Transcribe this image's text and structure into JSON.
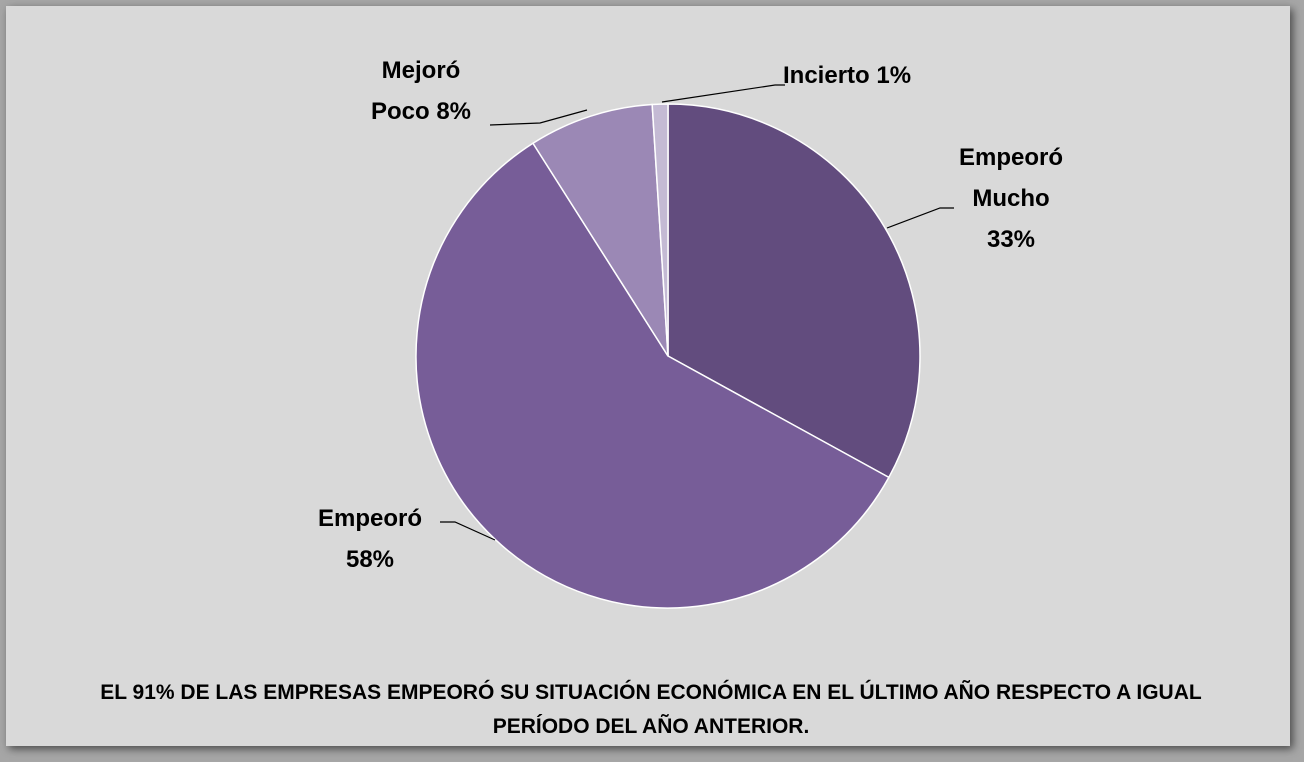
{
  "chart_data": {
    "type": "pie",
    "categories": [
      "Empeoró Mucho",
      "Empeoró",
      "Mejoró Poco",
      "Incierto"
    ],
    "values": [
      33,
      58,
      8,
      1
    ],
    "value_labels": [
      "33%",
      "58%",
      "8%",
      "1%"
    ],
    "colors": [
      "#624c7e",
      "#775d98",
      "#9b88b5",
      "#c4bad4"
    ],
    "annotation": "EL 91% DE LAS EMPRESAS EMPEORÓ SU SITUACIÓN ECONÓMICA EN EL ÚLTIMO AÑO RESPECTO A IGUAL PERÍODO DEL AÑO ANTERIOR."
  }
}
